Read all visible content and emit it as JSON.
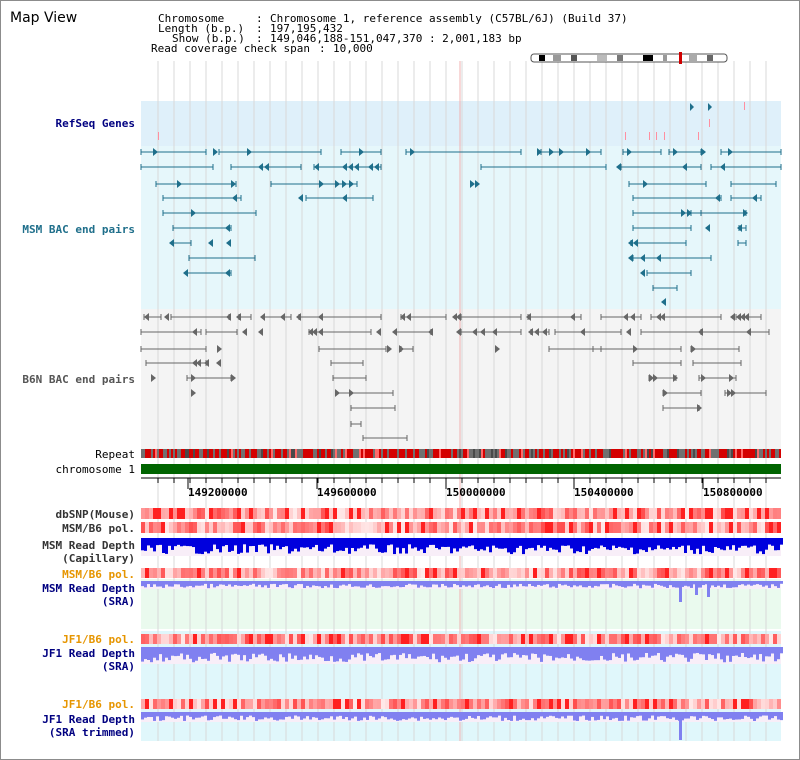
{
  "page": {
    "title": "Map View"
  },
  "info": {
    "chromosome_key": "Chromosome",
    "chromosome_value": "Chromosome 1, reference assembly (C57BL/6J) (Build 37)",
    "length_key": "Length (b.p.)",
    "length_value": "197,195,432",
    "show_key": "Show (b.p.)",
    "show_value": "149,046,188-151,047,370 : 2,001,183 bp",
    "read_key": "Read coverage check span",
    "read_value": "10,000"
  },
  "tracks": {
    "refseq": "RefSeq Genes",
    "msm_bac": "MSM BAC end pairs",
    "b6n_bac": "B6N BAC end pairs",
    "repeat": "Repeat",
    "chromosome": "chromosome 1",
    "dbsnp": "dbSNP(Mouse)",
    "msm_b6_pol": "MSM/B6 pol.",
    "msm_read_depth_cap_1": "MSM Read Depth",
    "msm_read_depth_cap_2": "(Capillary)",
    "msm_b6_pol_2": "MSM/B6 pol.",
    "msm_read_depth_sra_1": "MSM Read Depth",
    "msm_read_depth_sra_2": "(SRA)",
    "jf1_b6_pol": "JF1/B6 pol.",
    "jf1_read_depth_1": "JF1 Read Depth",
    "jf1_read_depth_2": "(SRA)",
    "jf1_b6_pol_2": "JF1/B6 pol.",
    "jf1_read_depth_trim_1": "JF1 Read Depth",
    "jf1_read_depth_trim_2": "(SRA trimmed)"
  },
  "axis": {
    "ticks": [
      "149200000",
      "149600000",
      "150000000",
      "150400000",
      "150800000"
    ]
  },
  "colors": {
    "refseq_bg": "#dff0fa",
    "msm_bg": "#e6f7fb",
    "b6n_bg": "#f4f4f4",
    "msm_line": "#1f6f8b",
    "b6n_line": "#666666",
    "chromosome_bar": "#006400",
    "label_navy": "#000080",
    "label_teal": "#1f6f8b",
    "label_orange": "#e69500",
    "depth_blue": "#0000dd",
    "depth_light": "#8080f0"
  }
}
